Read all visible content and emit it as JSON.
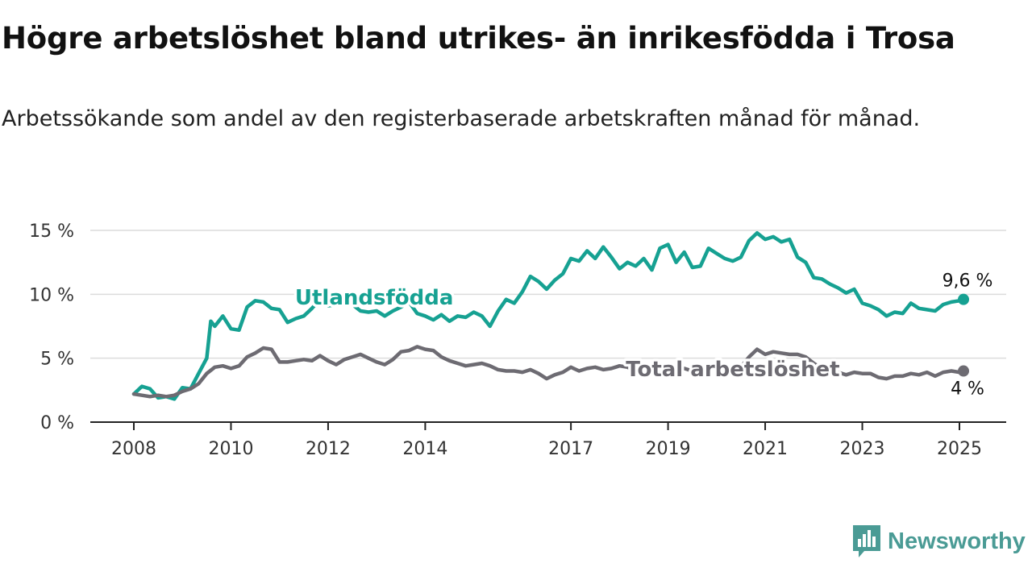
{
  "title": "Högre arbetslöshet bland utrikes- än inrikesfödda i Trosa",
  "subtitle": "Arbetssökande som andel av den registerbaserade arbetskraften månad för månad.",
  "brand": {
    "name": "Newsworthy",
    "icon": "bar-chart-logo-icon",
    "color": "#4a9b95"
  },
  "chart_data": {
    "type": "line",
    "title": "",
    "xlabel": "",
    "ylabel": "",
    "xlim": [
      "2008-01",
      "2025-09"
    ],
    "ylim": [
      0,
      15
    ],
    "y_ticks": [
      {
        "value": 0,
        "label": "0 %"
      },
      {
        "value": 5,
        "label": "5 %"
      },
      {
        "value": 10,
        "label": "10 %"
      },
      {
        "value": 15,
        "label": "15 %"
      }
    ],
    "x_ticks": [
      {
        "value": "2008-01",
        "label": "2008"
      },
      {
        "value": "2010-01",
        "label": "2010"
      },
      {
        "value": "2012-01",
        "label": "2012"
      },
      {
        "value": "2014-01",
        "label": "2014"
      },
      {
        "value": "2017-01",
        "label": "2017"
      },
      {
        "value": "2019-01",
        "label": "2019"
      },
      {
        "value": "2021-01",
        "label": "2021"
      },
      {
        "value": "2023-01",
        "label": "2023"
      },
      {
        "value": "2025-01",
        "label": "2025"
      }
    ],
    "grid": true,
    "legend": "none",
    "series": [
      {
        "name": "Utlandsfödda",
        "color": "#16a192",
        "end_label": "9,6 %",
        "points": [
          [
            "2008-01",
            2.2
          ],
          [
            "2008-03",
            2.8
          ],
          [
            "2008-05",
            2.6
          ],
          [
            "2008-07",
            1.9
          ],
          [
            "2008-09",
            2.0
          ],
          [
            "2008-11",
            1.8
          ],
          [
            "2009-01",
            2.7
          ],
          [
            "2009-03",
            2.6
          ],
          [
            "2009-05",
            3.8
          ],
          [
            "2009-07",
            5.0
          ],
          [
            "2009-08",
            7.9
          ],
          [
            "2009-09",
            7.5
          ],
          [
            "2009-11",
            8.3
          ],
          [
            "2010-01",
            7.3
          ],
          [
            "2010-03",
            7.2
          ],
          [
            "2010-05",
            9.0
          ],
          [
            "2010-07",
            9.5
          ],
          [
            "2010-09",
            9.4
          ],
          [
            "2010-11",
            8.9
          ],
          [
            "2011-01",
            8.8
          ],
          [
            "2011-03",
            7.8
          ],
          [
            "2011-05",
            8.1
          ],
          [
            "2011-07",
            8.3
          ],
          [
            "2011-09",
            8.9
          ],
          [
            "2011-11",
            9.6
          ],
          [
            "2012-01",
            9.1
          ],
          [
            "2012-03",
            9.2
          ],
          [
            "2012-05",
            9.6
          ],
          [
            "2012-07",
            9.2
          ],
          [
            "2012-09",
            8.7
          ],
          [
            "2012-11",
            8.6
          ],
          [
            "2013-01",
            8.7
          ],
          [
            "2013-03",
            8.3
          ],
          [
            "2013-05",
            8.7
          ],
          [
            "2013-07",
            9.0
          ],
          [
            "2013-09",
            9.4
          ],
          [
            "2013-11",
            8.5
          ],
          [
            "2014-01",
            8.3
          ],
          [
            "2014-03",
            8.0
          ],
          [
            "2014-05",
            8.4
          ],
          [
            "2014-07",
            7.9
          ],
          [
            "2014-09",
            8.3
          ],
          [
            "2014-11",
            8.2
          ],
          [
            "2015-01",
            8.6
          ],
          [
            "2015-03",
            8.3
          ],
          [
            "2015-05",
            7.5
          ],
          [
            "2015-07",
            8.7
          ],
          [
            "2015-09",
            9.6
          ],
          [
            "2015-11",
            9.3
          ],
          [
            "2016-01",
            10.2
          ],
          [
            "2016-03",
            11.4
          ],
          [
            "2016-05",
            11.0
          ],
          [
            "2016-07",
            10.4
          ],
          [
            "2016-09",
            11.1
          ],
          [
            "2016-11",
            11.6
          ],
          [
            "2017-01",
            12.8
          ],
          [
            "2017-03",
            12.6
          ],
          [
            "2017-05",
            13.4
          ],
          [
            "2017-07",
            12.8
          ],
          [
            "2017-09",
            13.7
          ],
          [
            "2017-11",
            12.9
          ],
          [
            "2018-01",
            12.0
          ],
          [
            "2018-03",
            12.5
          ],
          [
            "2018-05",
            12.2
          ],
          [
            "2018-07",
            12.8
          ],
          [
            "2018-09",
            11.9
          ],
          [
            "2018-11",
            13.6
          ],
          [
            "2019-01",
            13.9
          ],
          [
            "2019-03",
            12.5
          ],
          [
            "2019-05",
            13.3
          ],
          [
            "2019-07",
            12.1
          ],
          [
            "2019-09",
            12.2
          ],
          [
            "2019-11",
            13.6
          ],
          [
            "2020-01",
            13.2
          ],
          [
            "2020-03",
            12.8
          ],
          [
            "2020-05",
            12.6
          ],
          [
            "2020-07",
            12.9
          ],
          [
            "2020-09",
            14.2
          ],
          [
            "2020-11",
            14.8
          ],
          [
            "2021-01",
            14.3
          ],
          [
            "2021-03",
            14.5
          ],
          [
            "2021-05",
            14.1
          ],
          [
            "2021-07",
            14.3
          ],
          [
            "2021-09",
            12.9
          ],
          [
            "2021-11",
            12.5
          ],
          [
            "2022-01",
            11.3
          ],
          [
            "2022-03",
            11.2
          ],
          [
            "2022-05",
            10.8
          ],
          [
            "2022-07",
            10.5
          ],
          [
            "2022-09",
            10.1
          ],
          [
            "2022-11",
            10.4
          ],
          [
            "2023-01",
            9.3
          ],
          [
            "2023-03",
            9.1
          ],
          [
            "2023-05",
            8.8
          ],
          [
            "2023-07",
            8.3
          ],
          [
            "2023-09",
            8.6
          ],
          [
            "2023-11",
            8.5
          ],
          [
            "2024-01",
            9.3
          ],
          [
            "2024-03",
            8.9
          ],
          [
            "2024-05",
            8.8
          ],
          [
            "2024-07",
            8.7
          ],
          [
            "2024-09",
            9.2
          ],
          [
            "2024-11",
            9.4
          ],
          [
            "2025-01",
            9.5
          ],
          [
            "2025-02",
            9.6
          ]
        ]
      },
      {
        "name": "Total arbetslöshet",
        "color": "#6d6b72",
        "end_label": "4 %",
        "points": [
          [
            "2008-01",
            2.2
          ],
          [
            "2008-03",
            2.1
          ],
          [
            "2008-05",
            2.0
          ],
          [
            "2008-07",
            2.1
          ],
          [
            "2008-09",
            2.0
          ],
          [
            "2008-11",
            2.1
          ],
          [
            "2009-01",
            2.4
          ],
          [
            "2009-03",
            2.6
          ],
          [
            "2009-05",
            3.0
          ],
          [
            "2009-07",
            3.8
          ],
          [
            "2009-09",
            4.3
          ],
          [
            "2009-11",
            4.4
          ],
          [
            "2010-01",
            4.2
          ],
          [
            "2010-03",
            4.4
          ],
          [
            "2010-05",
            5.1
          ],
          [
            "2010-07",
            5.4
          ],
          [
            "2010-09",
            5.8
          ],
          [
            "2010-11",
            5.7
          ],
          [
            "2011-01",
            4.7
          ],
          [
            "2011-03",
            4.7
          ],
          [
            "2011-05",
            4.8
          ],
          [
            "2011-07",
            4.9
          ],
          [
            "2011-09",
            4.8
          ],
          [
            "2011-11",
            5.2
          ],
          [
            "2012-01",
            4.8
          ],
          [
            "2012-03",
            4.5
          ],
          [
            "2012-05",
            4.9
          ],
          [
            "2012-07",
            5.1
          ],
          [
            "2012-09",
            5.3
          ],
          [
            "2012-11",
            5.0
          ],
          [
            "2013-01",
            4.7
          ],
          [
            "2013-03",
            4.5
          ],
          [
            "2013-05",
            4.9
          ],
          [
            "2013-07",
            5.5
          ],
          [
            "2013-09",
            5.6
          ],
          [
            "2013-11",
            5.9
          ],
          [
            "2014-01",
            5.7
          ],
          [
            "2014-03",
            5.6
          ],
          [
            "2014-05",
            5.1
          ],
          [
            "2014-07",
            4.8
          ],
          [
            "2014-09",
            4.6
          ],
          [
            "2014-11",
            4.4
          ],
          [
            "2015-01",
            4.5
          ],
          [
            "2015-03",
            4.6
          ],
          [
            "2015-05",
            4.4
          ],
          [
            "2015-07",
            4.1
          ],
          [
            "2015-09",
            4.0
          ],
          [
            "2015-11",
            4.0
          ],
          [
            "2016-01",
            3.9
          ],
          [
            "2016-03",
            4.1
          ],
          [
            "2016-05",
            3.8
          ],
          [
            "2016-07",
            3.4
          ],
          [
            "2016-09",
            3.7
          ],
          [
            "2016-11",
            3.9
          ],
          [
            "2017-01",
            4.3
          ],
          [
            "2017-03",
            4.0
          ],
          [
            "2017-05",
            4.2
          ],
          [
            "2017-07",
            4.3
          ],
          [
            "2017-09",
            4.1
          ],
          [
            "2017-11",
            4.2
          ],
          [
            "2018-01",
            4.4
          ],
          [
            "2018-03",
            4.3
          ],
          [
            "2018-05",
            4.0
          ],
          [
            "2018-07",
            4.2
          ],
          [
            "2018-09",
            4.1
          ],
          [
            "2018-11",
            4.3
          ],
          [
            "2019-01",
            4.4
          ],
          [
            "2019-03",
            4.2
          ],
          [
            "2019-05",
            4.2
          ],
          [
            "2019-07",
            4.0
          ],
          [
            "2019-09",
            4.1
          ],
          [
            "2019-11",
            4.3
          ],
          [
            "2020-01",
            4.2
          ],
          [
            "2020-03",
            4.1
          ],
          [
            "2020-05",
            4.0
          ],
          [
            "2020-07",
            4.3
          ],
          [
            "2020-09",
            5.1
          ],
          [
            "2020-11",
            5.7
          ],
          [
            "2021-01",
            5.3
          ],
          [
            "2021-03",
            5.5
          ],
          [
            "2021-05",
            5.4
          ],
          [
            "2021-07",
            5.3
          ],
          [
            "2021-09",
            5.3
          ],
          [
            "2021-11",
            5.1
          ],
          [
            "2022-01",
            4.6
          ],
          [
            "2022-03",
            4.2
          ],
          [
            "2022-05",
            4.1
          ],
          [
            "2022-07",
            3.9
          ],
          [
            "2022-09",
            3.7
          ],
          [
            "2022-11",
            3.9
          ],
          [
            "2023-01",
            3.8
          ],
          [
            "2023-03",
            3.8
          ],
          [
            "2023-05",
            3.5
          ],
          [
            "2023-07",
            3.4
          ],
          [
            "2023-09",
            3.6
          ],
          [
            "2023-11",
            3.6
          ],
          [
            "2024-01",
            3.8
          ],
          [
            "2024-03",
            3.7
          ],
          [
            "2024-05",
            3.9
          ],
          [
            "2024-07",
            3.6
          ],
          [
            "2024-09",
            3.9
          ],
          [
            "2024-11",
            4.0
          ],
          [
            "2025-01",
            3.9
          ],
          [
            "2025-02",
            4.0
          ]
        ]
      }
    ]
  }
}
